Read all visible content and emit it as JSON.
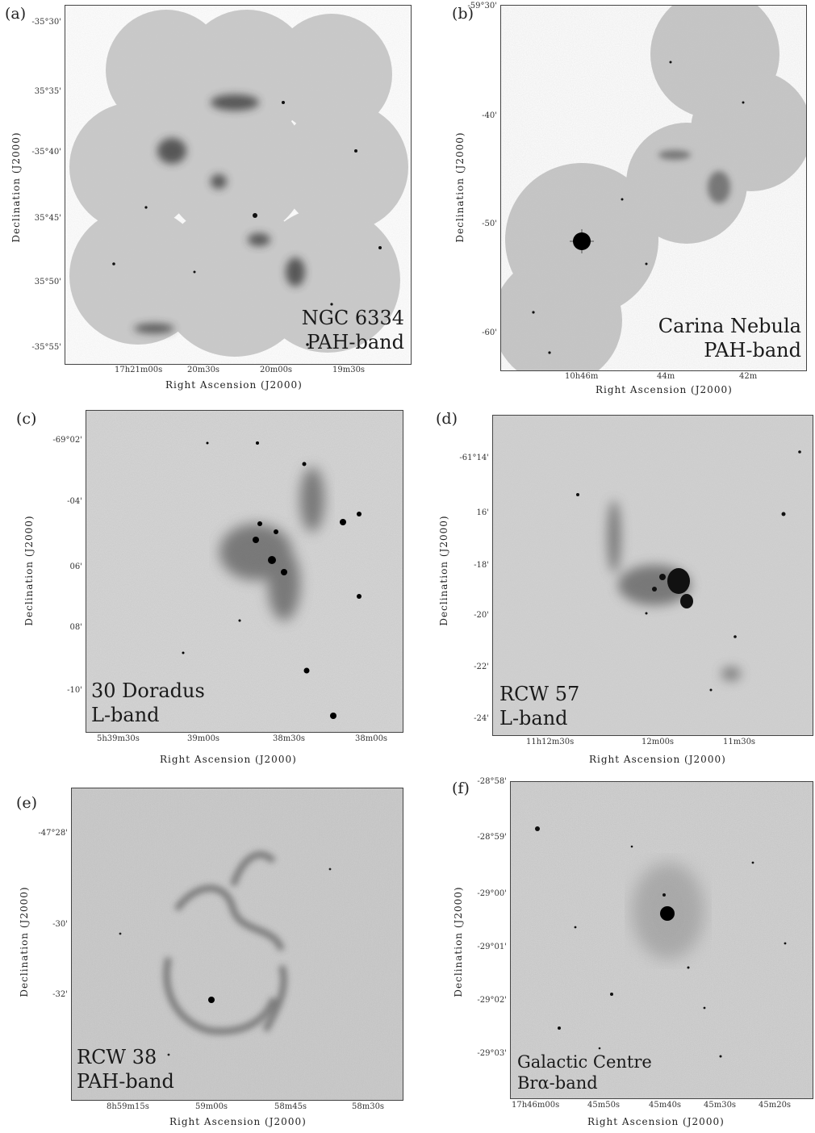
{
  "panels": [
    {
      "letter": "(a)",
      "object": "NGC 6334",
      "band": "PAH-band",
      "ylabel": "Declination (J2000)",
      "xlabel": "Right Ascension (J2000)",
      "yticks": [
        "-35°30'",
        "35°35'",
        "-35°40'",
        "35°45'",
        "35°50'",
        "-35°55'"
      ],
      "xticks": [
        "17h21m00s",
        "20m30s",
        "20m00s",
        "19m30s"
      ]
    },
    {
      "letter": "(b)",
      "object": "Carina Nebula",
      "band": "PAH-band",
      "ylabel": "Declination (J2000)",
      "xlabel": "Right Ascension (J2000)",
      "yticks": [
        "-59°30'",
        "-40'",
        "-50'",
        "-60'"
      ],
      "xticks": [
        "10h46m",
        "44m",
        "42m"
      ]
    },
    {
      "letter": "(c)",
      "object": "30 Doradus",
      "band": "L-band",
      "ylabel": "Declination (J2000)",
      "xlabel": "Right Ascension (J2000)",
      "yticks": [
        "-69°02'",
        "-04'",
        "06'",
        "08'",
        "-10'"
      ],
      "xticks": [
        "5h39m30s",
        "39m00s",
        "38m30s",
        "38m00s"
      ]
    },
    {
      "letter": "(d)",
      "object": "RCW 57",
      "band": "L-band",
      "ylabel": "Declination (J2000)",
      "xlabel": "Right Ascension (J2000)",
      "yticks": [
        "-61°14'",
        "16'",
        "-18'",
        "-20'",
        "-22'",
        "-24'"
      ],
      "xticks": [
        "11h12m30s",
        "12m00s",
        "11m30s"
      ]
    },
    {
      "letter": "(e)",
      "object": "RCW 38",
      "band": "PAH-band",
      "ylabel": "Declination (J2000)",
      "xlabel": "Right Ascension (J2000)",
      "yticks": [
        "-47°28'",
        "-30'",
        "-32'"
      ],
      "xticks": [
        "8h59m15s",
        "59m00s",
        "58m45s",
        "58m30s"
      ]
    },
    {
      "letter": "(f)",
      "object": "Galactic Centre",
      "band": "Brα-band",
      "ylabel": "Declination (J2000)",
      "xlabel": "Right Ascension (J2000)",
      "yticks": [
        "-28°58'",
        "-28°59'",
        "-29°00'",
        "-29°01'",
        "-29°02'",
        "-29°03'"
      ],
      "xticks": [
        "17h46m00s",
        "45m50s",
        "45m40s",
        "45m30s",
        "45m20s"
      ]
    }
  ]
}
